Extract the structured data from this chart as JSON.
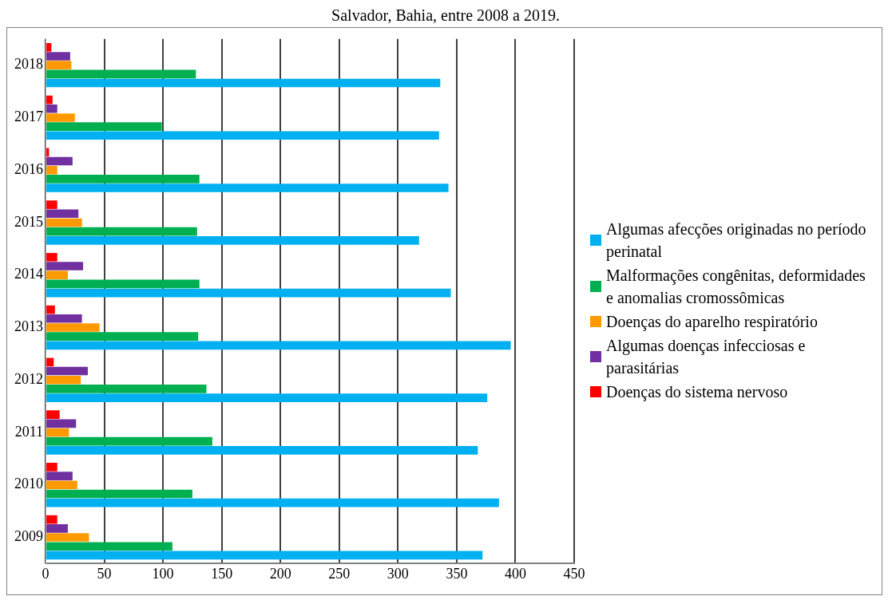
{
  "chart_data": {
    "type": "bar",
    "orientation": "horizontal",
    "title": "Salvador, Bahia, entre 2008 a 2019.",
    "categories": [
      "2018",
      "2017",
      "2016",
      "2015",
      "2014",
      "2013",
      "2012",
      "2011",
      "2010",
      "2009"
    ],
    "series": [
      {
        "name": "Algumas afecções originadas no período perinatal",
        "color": "#00b0f0",
        "values": [
          336,
          335,
          343,
          318,
          345,
          396,
          376,
          368,
          386,
          372
        ]
      },
      {
        "name": "Malformações congênitas, deformidades e anomalias cromossômicas",
        "color": "#00b050",
        "values": [
          128,
          99,
          131,
          129,
          131,
          130,
          137,
          142,
          125,
          108
        ]
      },
      {
        "name": "Doenças do aparelho respiratório",
        "color": "#ff9900",
        "values": [
          22,
          25,
          10,
          31,
          19,
          46,
          30,
          20,
          27,
          37
        ]
      },
      {
        "name": "Algumas doenças infecciosas e parasitárias",
        "color": "#7030a0",
        "values": [
          21,
          10,
          23,
          28,
          32,
          31,
          36,
          26,
          23,
          19
        ]
      },
      {
        "name": "Doenças do sistema nervoso",
        "color": "#ff0000",
        "values": [
          5,
          6,
          3,
          10,
          10,
          8,
          7,
          12,
          10,
          10
        ]
      }
    ],
    "xlim": [
      0,
      450
    ],
    "xticks": [
      0,
      50,
      100,
      150,
      200,
      250,
      300,
      350,
      400,
      450
    ],
    "grid": "x",
    "legend": "right"
  }
}
